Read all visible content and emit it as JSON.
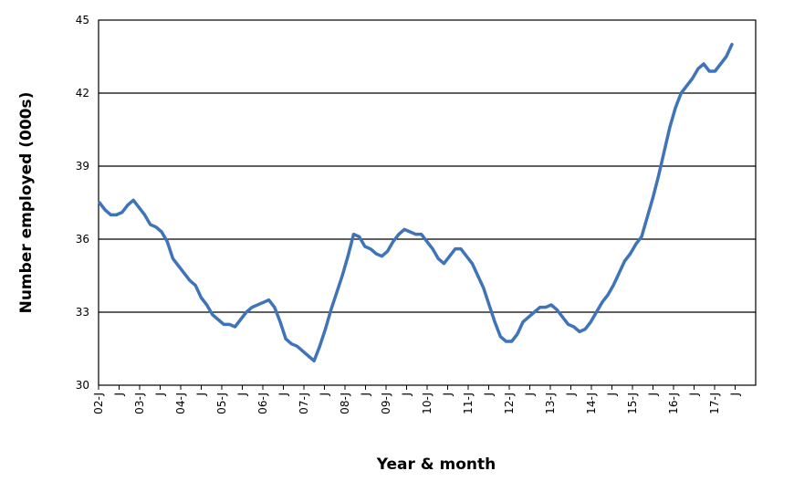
{
  "chart_data": {
    "type": "line",
    "xlabel": "Year & month",
    "ylabel": "Number employed (000s)",
    "ylim": [
      30,
      45
    ],
    "yticks": [
      "30",
      "33",
      "36",
      "39",
      "42",
      "45"
    ],
    "grid": "horizontal",
    "legend": "none",
    "x_tick_labels": [
      "02-J",
      "J",
      "03-J",
      "J",
      "04-J",
      "J",
      "05-J",
      "J",
      "06-J",
      "J",
      "07-J",
      "J",
      "08-J",
      "J",
      "09-J",
      "J",
      "10-J",
      "J",
      "11-J",
      "J",
      "12-J",
      "J",
      "13-J",
      "J",
      "14-J",
      "J",
      "15-J",
      "J",
      "16-J",
      "J",
      "17-J",
      "J"
    ],
    "line_color": "#3f74b8",
    "series": [
      {
        "values": [
          37.5,
          37.2,
          37.0,
          37.0,
          37.1,
          37.4,
          37.6,
          37.3,
          37.0,
          36.6,
          36.5,
          36.3,
          35.9,
          35.2,
          34.9,
          34.6,
          34.3,
          34.1,
          33.6,
          33.3,
          32.9,
          32.7,
          32.5,
          32.5,
          32.4,
          32.7,
          33.0,
          33.2,
          33.3,
          33.4,
          33.5,
          33.2,
          32.6,
          31.9,
          31.7,
          31.6,
          31.4,
          31.2,
          31.0,
          31.6,
          32.3,
          33.1,
          33.8,
          34.5,
          35.3,
          36.2,
          36.1,
          35.7,
          35.6,
          35.4,
          35.3,
          35.5,
          35.9,
          36.2,
          36.4,
          36.3,
          36.2,
          36.2,
          35.9,
          35.6,
          35.2,
          35.0,
          35.3,
          35.6,
          35.6,
          35.3,
          35.0,
          34.5,
          34.0,
          33.3,
          32.6,
          32.0,
          31.8,
          31.8,
          32.1,
          32.6,
          32.8,
          33.0,
          33.2,
          33.2,
          33.3,
          33.1,
          32.8,
          32.5,
          32.4,
          32.2,
          32.3,
          32.6,
          33.0,
          33.4,
          33.7,
          34.1,
          34.6,
          35.1,
          35.4,
          35.8,
          36.1,
          36.9,
          37.7,
          38.6,
          39.6,
          40.6,
          41.4,
          42.0,
          42.3,
          42.6,
          43.0,
          43.2,
          42.9,
          42.9,
          43.2,
          43.5,
          44.0
        ]
      }
    ]
  }
}
